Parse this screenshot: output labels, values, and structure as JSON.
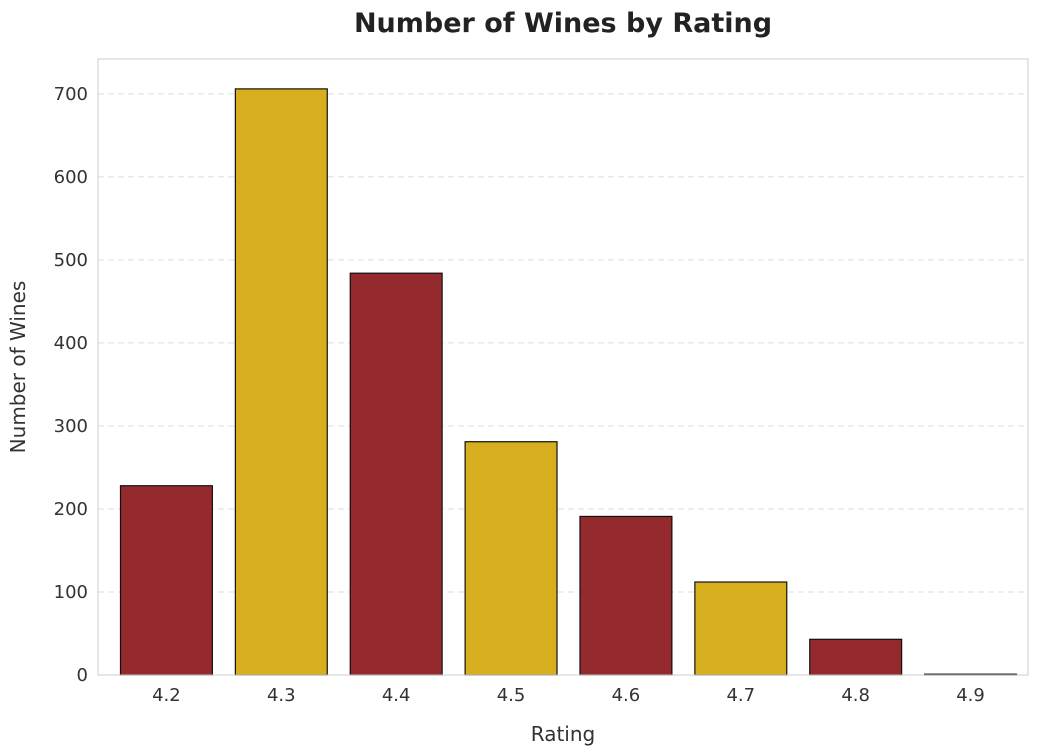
{
  "chart_data": {
    "type": "bar",
    "title": "Number of Wines by Rating",
    "xlabel": "Rating",
    "ylabel": "Number of Wines",
    "categories": [
      "4.2",
      "4.3",
      "4.4",
      "4.5",
      "4.6",
      "4.7",
      "4.8",
      "4.9"
    ],
    "values": [
      228,
      706,
      484,
      281,
      191,
      112,
      43,
      1
    ],
    "ylim": [
      0,
      742
    ],
    "yticks": [
      0,
      100,
      200,
      300,
      400,
      500,
      600,
      700
    ],
    "grid": true,
    "bar_colors": [
      "#952a2e",
      "#d6ae1e",
      "#952a2e",
      "#d6ae1e",
      "#952a2e",
      "#d6ae1e",
      "#952a2e",
      "#d6ae1e"
    ],
    "bar_edge_color": "#111111"
  }
}
